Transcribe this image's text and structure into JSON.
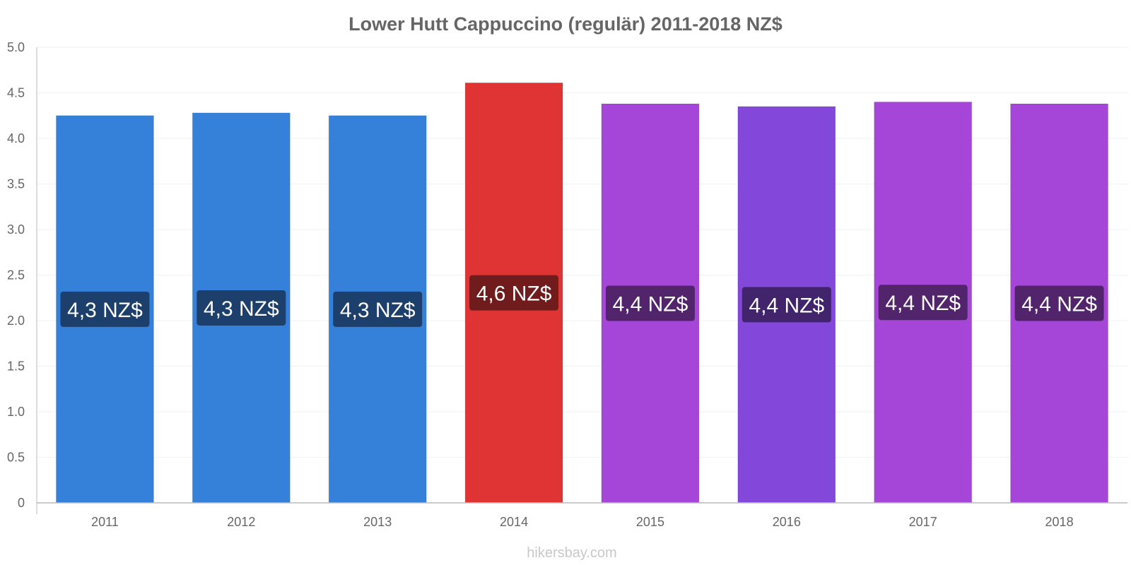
{
  "chart_data": {
    "type": "bar",
    "title": "Lower Hutt Cappuccino (regulär) 2011-2018 NZ$",
    "xlabel": "",
    "ylabel": "",
    "categories": [
      "2011",
      "2012",
      "2013",
      "2014",
      "2015",
      "2016",
      "2017",
      "2018"
    ],
    "values": [
      4.25,
      4.28,
      4.25,
      4.61,
      4.38,
      4.35,
      4.4,
      4.38
    ],
    "data_labels": [
      "4,3 NZ$",
      "4,3 NZ$",
      "4,3 NZ$",
      "4,6 NZ$",
      "4,4 NZ$",
      "4,4 NZ$",
      "4,4 NZ$",
      "4,4 NZ$"
    ],
    "bar_colors": [
      "#3580d9",
      "#3580d9",
      "#3580d9",
      "#e03434",
      "#a646d9",
      "#8348d9",
      "#a646d9",
      "#a646d9"
    ],
    "label_colors": [
      "#1d3f6b",
      "#1d3f6b",
      "#1d3f6b",
      "#701c1c",
      "#52246b",
      "#41246b",
      "#52246b",
      "#52246b"
    ],
    "ylim": [
      0,
      5
    ],
    "yticks": [
      "0",
      "0.5",
      "1.0",
      "1.5",
      "2.0",
      "2.5",
      "3.0",
      "3.5",
      "4.0",
      "4.5",
      "5.0"
    ],
    "grid": true
  },
  "credit": "hikersbay.com"
}
